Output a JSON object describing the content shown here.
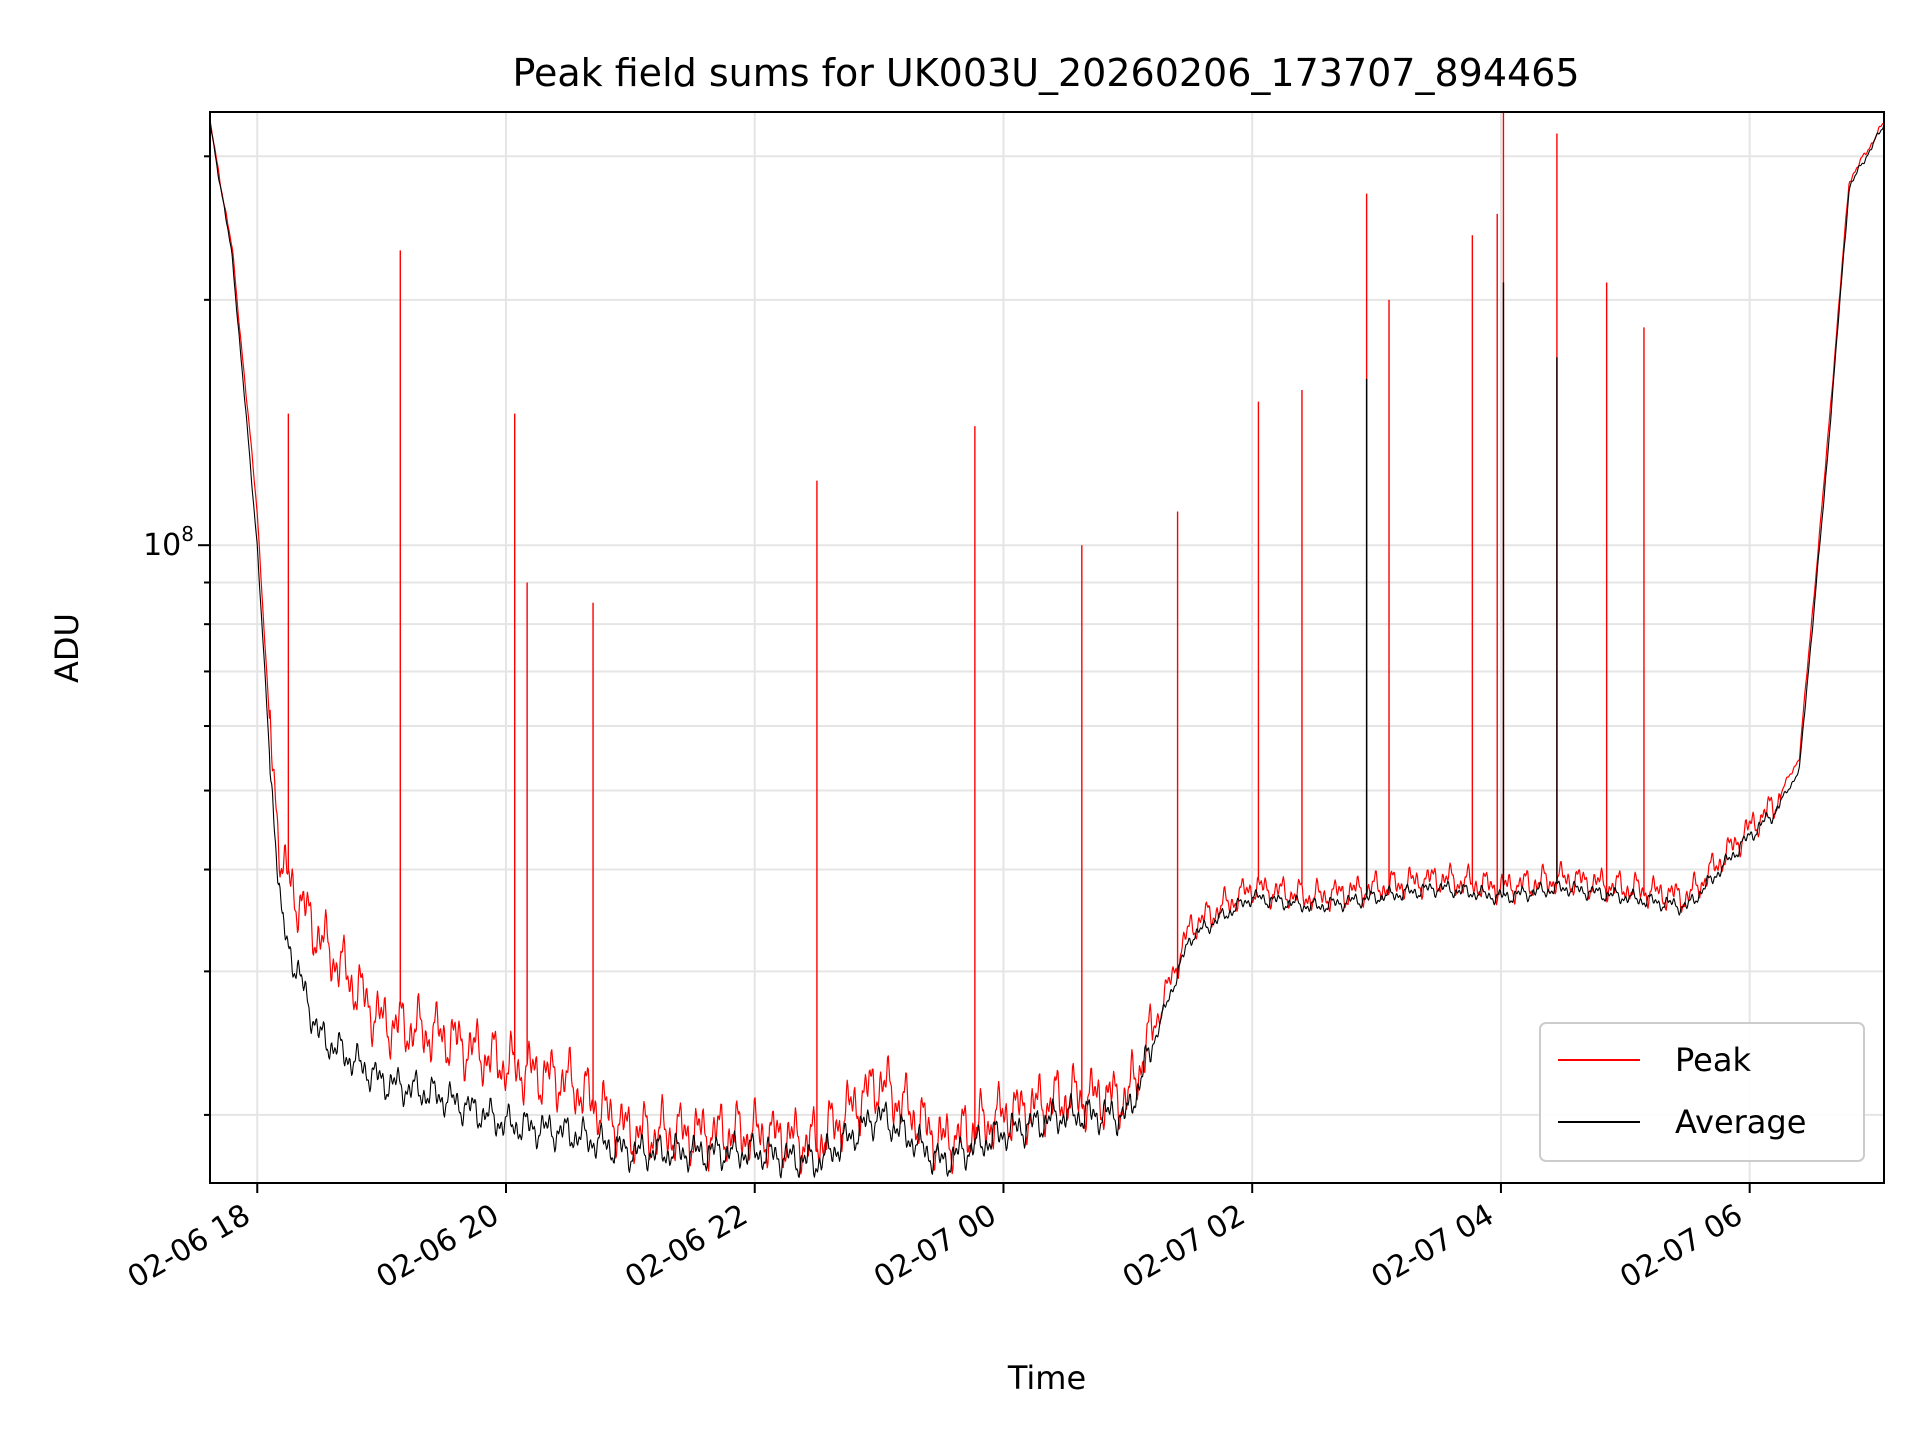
{
  "chart_data": {
    "type": "line",
    "title": "Peak field sums for UK003U_20260206_173707_894465",
    "xlabel": "Time",
    "ylabel": "ADU",
    "x_ticks": [
      "02-06 18",
      "02-06 20",
      "02-06 22",
      "02-07 00",
      "02-07 02",
      "02-07 04",
      "02-07 06"
    ],
    "x_tick_hours": [
      18,
      20,
      22,
      24,
      26,
      28,
      30
    ],
    "x_range_hours": [
      17.62,
      31.08
    ],
    "y_scale": "log",
    "y_range": [
      16500000,
      340000000
    ],
    "y_major_ticks": [
      100000000
    ],
    "y_major_tick_labels": [
      "10^8"
    ],
    "y_major_tick_base": "10",
    "y_major_tick_exp": "8",
    "y_minor_ticks": [
      20000000,
      30000000,
      40000000,
      50000000,
      60000000,
      70000000,
      80000000,
      90000000,
      200000000,
      300000000
    ],
    "grid": true,
    "legend_position": "lower right",
    "colors": {
      "peak": "#ff0000",
      "average": "#000000",
      "grid": "#e5e5e5",
      "axis": "#000000"
    },
    "series": [
      {
        "name": "Peak",
        "x_hours": [
          17.62,
          17.8,
          18.0,
          18.1,
          18.2,
          18.5,
          19.0,
          19.5,
          20.0,
          20.5,
          21.0,
          21.5,
          22.0,
          22.5,
          23.0,
          23.5,
          24.0,
          24.5,
          25.0,
          25.3,
          25.5,
          26.0,
          26.5,
          27.0,
          27.5,
          28.0,
          28.5,
          29.0,
          29.5,
          30.0,
          30.2,
          30.4,
          30.6,
          30.8,
          31.08
        ],
        "values": [
          330000000,
          230000000,
          110000000,
          60000000,
          40000000,
          33000000,
          26000000,
          25000000,
          23000000,
          22000000,
          19000000,
          19000000,
          19000000,
          18500000,
          22000000,
          18500000,
          20000000,
          21000000,
          21000000,
          28000000,
          34000000,
          38000000,
          37000000,
          38000000,
          39000000,
          38000000,
          39000000,
          38000000,
          37000000,
          45000000,
          48000000,
          55000000,
          120000000,
          280000000,
          330000000
        ],
        "spikes": [
          {
            "x_hour": 18.25,
            "value": 145000000
          },
          {
            "x_hour": 19.15,
            "value": 230000000
          },
          {
            "x_hour": 20.07,
            "value": 145000000
          },
          {
            "x_hour": 20.17,
            "value": 90000000
          },
          {
            "x_hour": 20.7,
            "value": 85000000
          },
          {
            "x_hour": 22.5,
            "value": 120000000
          },
          {
            "x_hour": 23.77,
            "value": 140000000
          },
          {
            "x_hour": 24.63,
            "value": 100000000
          },
          {
            "x_hour": 25.4,
            "value": 110000000
          },
          {
            "x_hour": 26.05,
            "value": 150000000
          },
          {
            "x_hour": 26.4,
            "value": 155000000
          },
          {
            "x_hour": 26.92,
            "value": 270000000
          },
          {
            "x_hour": 27.1,
            "value": 200000000
          },
          {
            "x_hour": 27.77,
            "value": 240000000
          },
          {
            "x_hour": 27.97,
            "value": 255000000
          },
          {
            "x_hour": 28.02,
            "value": 340000000
          },
          {
            "x_hour": 28.45,
            "value": 320000000
          },
          {
            "x_hour": 28.85,
            "value": 210000000
          },
          {
            "x_hour": 29.15,
            "value": 185000000
          }
        ]
      },
      {
        "name": "Average",
        "x_hours": [
          17.62,
          17.8,
          18.0,
          18.1,
          18.2,
          18.5,
          19.0,
          19.5,
          20.0,
          20.5,
          21.0,
          21.5,
          22.0,
          22.5,
          23.0,
          23.5,
          24.0,
          24.5,
          25.0,
          25.3,
          25.5,
          26.0,
          26.5,
          27.0,
          27.5,
          28.0,
          28.5,
          29.0,
          29.5,
          30.0,
          30.2,
          30.4,
          30.6,
          30.8,
          31.08
        ],
        "values": [
          330000000,
          225000000,
          100000000,
          55000000,
          34000000,
          25000000,
          22000000,
          21000000,
          19500000,
          19000000,
          18000000,
          18000000,
          18000000,
          17500000,
          20000000,
          17500000,
          19000000,
          20000000,
          20000000,
          27000000,
          33000000,
          37000000,
          36000000,
          37000000,
          38000000,
          37000000,
          38000000,
          37000000,
          36000000,
          44000000,
          47000000,
          53000000,
          115000000,
          275000000,
          328000000
        ],
        "spikes": [
          {
            "x_hour": 26.92,
            "value": 160000000
          },
          {
            "x_hour": 28.02,
            "value": 210000000
          },
          {
            "x_hour": 28.45,
            "value": 170000000
          }
        ]
      }
    ]
  }
}
